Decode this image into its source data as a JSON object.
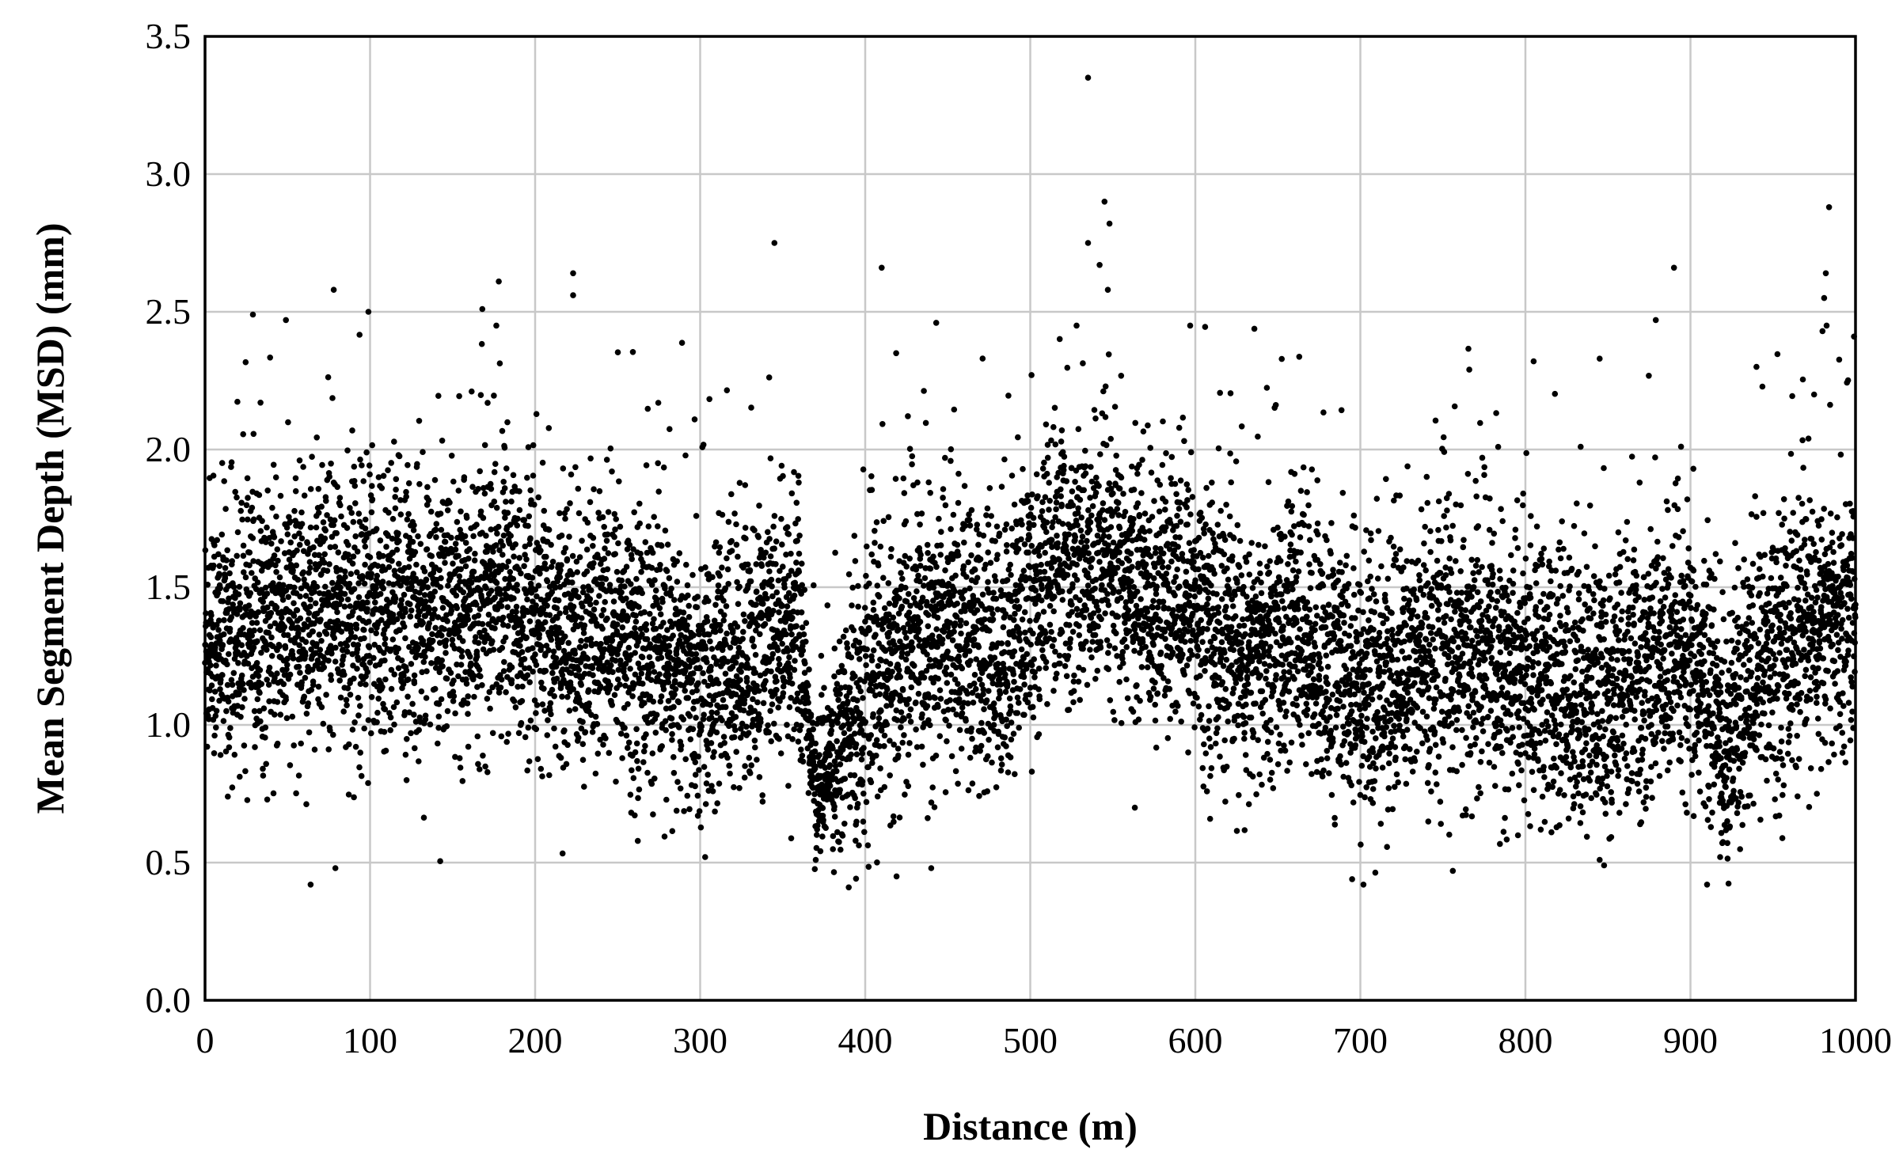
{
  "chart_data": {
    "type": "scatter",
    "title": "",
    "xlabel": "Distance (m)",
    "ylabel": "Mean Segment Depth (MSD) (mm)",
    "xlim": [
      0,
      1000
    ],
    "ylim": [
      0,
      3.5
    ],
    "x_ticks": [
      0,
      100,
      200,
      300,
      400,
      500,
      600,
      700,
      800,
      900,
      1000
    ],
    "x_tick_labels": [
      "0",
      "100",
      "200",
      "300",
      "400",
      "500",
      "600",
      "700",
      "800",
      "900",
      "1000"
    ],
    "y_ticks": [
      0,
      0.5,
      1,
      1.5,
      2,
      2.5,
      3,
      3.5
    ],
    "y_tick_labels": [
      "0.0",
      "0.5",
      "1.0",
      "1.5",
      "2.0",
      "2.5",
      "3.0",
      "3.5"
    ],
    "grid": true,
    "legend": "none",
    "marker_color": "#000000",
    "series": [
      {
        "n_points": 10000,
        "x_range": [
          0,
          1000
        ],
        "local_mean_profile": [
          [
            0,
            1.3
          ],
          [
            50,
            1.38
          ],
          [
            100,
            1.45
          ],
          [
            150,
            1.4
          ],
          [
            180,
            1.5
          ],
          [
            200,
            1.32
          ],
          [
            250,
            1.35
          ],
          [
            300,
            1.15
          ],
          [
            340,
            1.3
          ],
          [
            360,
            1.35
          ],
          [
            370,
            0.75
          ],
          [
            390,
            1.0
          ],
          [
            410,
            1.2
          ],
          [
            450,
            1.35
          ],
          [
            480,
            1.25
          ],
          [
            520,
            1.62
          ],
          [
            560,
            1.5
          ],
          [
            600,
            1.45
          ],
          [
            630,
            1.22
          ],
          [
            660,
            1.35
          ],
          [
            700,
            1.12
          ],
          [
            750,
            1.28
          ],
          [
            800,
            1.18
          ],
          [
            850,
            1.1
          ],
          [
            880,
            1.25
          ],
          [
            910,
            1.15
          ],
          [
            920,
            0.95
          ],
          [
            950,
            1.3
          ],
          [
            1000,
            1.4
          ]
        ],
        "notable_points": [
          [
            535,
            3.35
          ],
          [
            545,
            2.9
          ],
          [
            548,
            2.82
          ],
          [
            535,
            2.75
          ],
          [
            345,
            2.75
          ],
          [
            984,
            2.88
          ],
          [
            982,
            2.64
          ],
          [
            981,
            2.55
          ],
          [
            980,
            2.43
          ],
          [
            890,
            2.66
          ],
          [
            410,
            2.66
          ],
          [
            223,
            2.64
          ],
          [
            223,
            2.56
          ],
          [
            78,
            2.58
          ],
          [
            99,
            2.5
          ],
          [
            29,
            2.49
          ],
          [
            49,
            2.47
          ],
          [
            443,
            2.46
          ],
          [
            879,
            2.47
          ],
          [
            178,
            2.61
          ],
          [
            168,
            2.51
          ],
          [
            940,
            2.3
          ],
          [
            845,
            2.33
          ],
          [
            805,
            2.32
          ],
          [
            766,
            2.29
          ],
          [
            547,
            2.58
          ],
          [
            542,
            2.67
          ],
          [
            64,
            0.42
          ],
          [
            79,
            0.48
          ],
          [
            390,
            0.41
          ],
          [
            419,
            0.45
          ],
          [
            440,
            0.48
          ],
          [
            695,
            0.44
          ],
          [
            756,
            0.47
          ],
          [
            845,
            0.51
          ],
          [
            918,
            0.52
          ],
          [
            303,
            0.52
          ]
        ]
      }
    ]
  }
}
